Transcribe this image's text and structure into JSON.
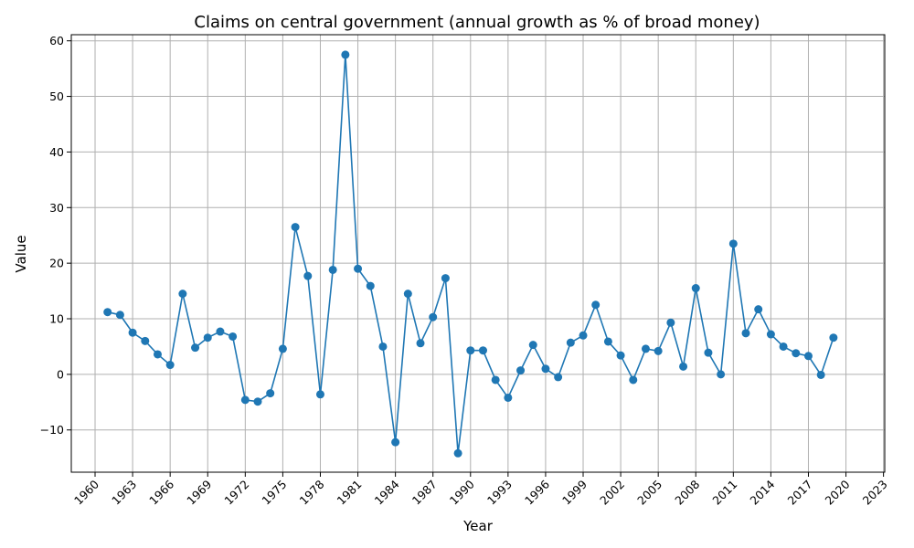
{
  "chart_data": {
    "type": "line",
    "title": "Claims on central government (annual growth as % of broad money)",
    "xlabel": "Year",
    "ylabel": "Value",
    "xlim": [
      1958.1,
      2023.1
    ],
    "ylim": [
      -17.6,
      61.1
    ],
    "xticks": [
      1960,
      1963,
      1966,
      1969,
      1972,
      1975,
      1978,
      1981,
      1984,
      1987,
      1990,
      1993,
      1996,
      1999,
      2002,
      2005,
      2008,
      2011,
      2014,
      2017,
      2020,
      2023
    ],
    "yticks": [
      -10,
      0,
      10,
      20,
      30,
      40,
      50,
      60
    ],
    "grid": true,
    "color": "#1f77b4",
    "marker": "circle",
    "series": [
      {
        "x": [
          1961,
          1962,
          1963,
          1964,
          1965,
          1966,
          1967,
          1968,
          1969,
          1970,
          1971,
          1972,
          1973,
          1974,
          1975,
          1976,
          1977,
          1978,
          1979,
          1980,
          1981,
          1982,
          1983,
          1984,
          1985,
          1986,
          1987,
          1988,
          1989,
          1990,
          1991,
          1992,
          1993,
          1994,
          1995,
          1996,
          1997,
          1998,
          1999,
          2000,
          2001,
          2002,
          2003,
          2004,
          2005,
          2006,
          2007,
          2008,
          2009,
          2010,
          2011,
          2012,
          2013,
          2014,
          2015,
          2016,
          2017,
          2018,
          2019
        ],
        "y": [
          11.2,
          10.7,
          7.5,
          6.0,
          3.6,
          1.7,
          14.5,
          4.8,
          6.6,
          7.7,
          6.8,
          -4.6,
          -4.9,
          -3.4,
          4.6,
          26.5,
          17.7,
          -3.6,
          18.8,
          57.5,
          19.0,
          15.9,
          5.0,
          -12.2,
          14.5,
          5.6,
          10.3,
          17.3,
          -14.2,
          4.3,
          4.3,
          -1.0,
          -4.2,
          0.7,
          5.3,
          1.0,
          -0.5,
          5.7,
          7.0,
          12.5,
          5.9,
          3.4,
          -1.0,
          4.6,
          4.2,
          9.3,
          1.4,
          15.5,
          3.9,
          0.0,
          23.5,
          7.4,
          11.7,
          7.2,
          5.0,
          3.8,
          3.3,
          -0.1,
          6.6
        ]
      }
    ]
  }
}
